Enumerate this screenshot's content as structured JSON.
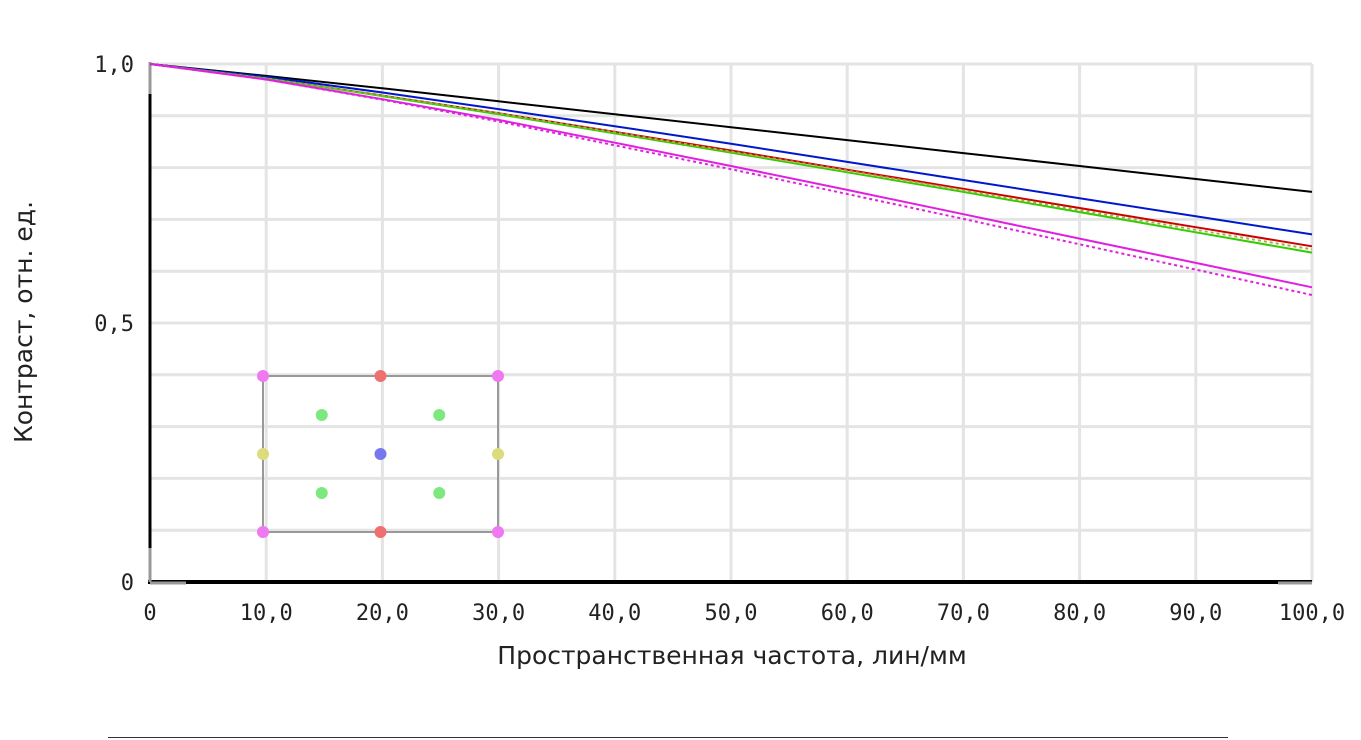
{
  "chart_data": {
    "type": "line",
    "title": "",
    "xlabel": "Пространственная частота, лин/мм",
    "ylabel": "Контраст, отн. ед.",
    "xlim": [
      0,
      100
    ],
    "ylim": [
      0,
      1
    ],
    "x_ticks": [
      {
        "value": 0,
        "label": "0"
      },
      {
        "value": 10,
        "label": "10,0"
      },
      {
        "value": 20,
        "label": "20,0"
      },
      {
        "value": 30,
        "label": "30,0"
      },
      {
        "value": 40,
        "label": "40,0"
      },
      {
        "value": 50,
        "label": "50,0"
      },
      {
        "value": 60,
        "label": "60,0"
      },
      {
        "value": 70,
        "label": "70,0"
      },
      {
        "value": 80,
        "label": "80,0"
      },
      {
        "value": 90,
        "label": "90,0"
      },
      {
        "value": 100,
        "label": "100,0"
      }
    ],
    "y_ticks": [
      {
        "value": 0,
        "label": "0"
      },
      {
        "value": 0.5,
        "label": "0,5"
      },
      {
        "value": 1.0,
        "label": "1,0"
      }
    ],
    "grid": true,
    "legend": "none",
    "x": [
      0,
      10,
      20,
      30,
      40,
      50,
      60,
      70,
      80,
      90,
      100
    ],
    "series": [
      {
        "color": "#000000",
        "dashed": false,
        "values": [
          1.0,
          0.977,
          0.953,
          0.928,
          0.903,
          0.878,
          0.853,
          0.828,
          0.803,
          0.778,
          0.753
        ]
      },
      {
        "color": "#0018cc",
        "dashed": false,
        "values": [
          1.0,
          0.975,
          0.945,
          0.913,
          0.88,
          0.846,
          0.811,
          0.776,
          0.741,
          0.706,
          0.671
        ]
      },
      {
        "color": "#cc0000",
        "dashed": false,
        "values": [
          1.0,
          0.972,
          0.939,
          0.905,
          0.869,
          0.833,
          0.796,
          0.759,
          0.722,
          0.685,
          0.648
        ]
      },
      {
        "color": "#33cc00",
        "dashed": false,
        "values": [
          1.0,
          0.972,
          0.938,
          0.903,
          0.866,
          0.829,
          0.791,
          0.753,
          0.714,
          0.675,
          0.636
        ]
      },
      {
        "color": "#aaaa44",
        "dashed": true,
        "values": [
          1.0,
          0.972,
          0.939,
          0.905,
          0.868,
          0.831,
          0.794,
          0.756,
          0.718,
          0.68,
          0.642
        ]
      },
      {
        "color": "#e020e0",
        "dashed": false,
        "values": [
          1.0,
          0.97,
          0.932,
          0.892,
          0.848,
          0.803,
          0.757,
          0.71,
          0.663,
          0.616,
          0.569
        ]
      },
      {
        "color": "#e020e0",
        "dashed": true,
        "values": [
          1.0,
          0.97,
          0.931,
          0.889,
          0.843,
          0.797,
          0.749,
          0.701,
          0.652,
          0.603,
          0.554
        ]
      }
    ],
    "field_inset": {
      "frame_color": "#999999",
      "points": [
        {
          "col": 0,
          "row": 0,
          "color": "#f078f0"
        },
        {
          "col": 2,
          "row": 0,
          "color": "#ee7070"
        },
        {
          "col": 4,
          "row": 0,
          "color": "#f078f0"
        },
        {
          "col": 1,
          "row": 1,
          "color": "#7de87d"
        },
        {
          "col": 3,
          "row": 1,
          "color": "#7de87d"
        },
        {
          "col": 0,
          "row": 2,
          "color": "#dcdc7c"
        },
        {
          "col": 2,
          "row": 2,
          "color": "#7878ee"
        },
        {
          "col": 4,
          "row": 2,
          "color": "#dcdc7c"
        },
        {
          "col": 1,
          "row": 3,
          "color": "#7de87d"
        },
        {
          "col": 3,
          "row": 3,
          "color": "#7de87d"
        },
        {
          "col": 0,
          "row": 4,
          "color": "#f078f0"
        },
        {
          "col": 2,
          "row": 4,
          "color": "#ee7070"
        },
        {
          "col": 4,
          "row": 4,
          "color": "#f078f0"
        }
      ]
    }
  }
}
